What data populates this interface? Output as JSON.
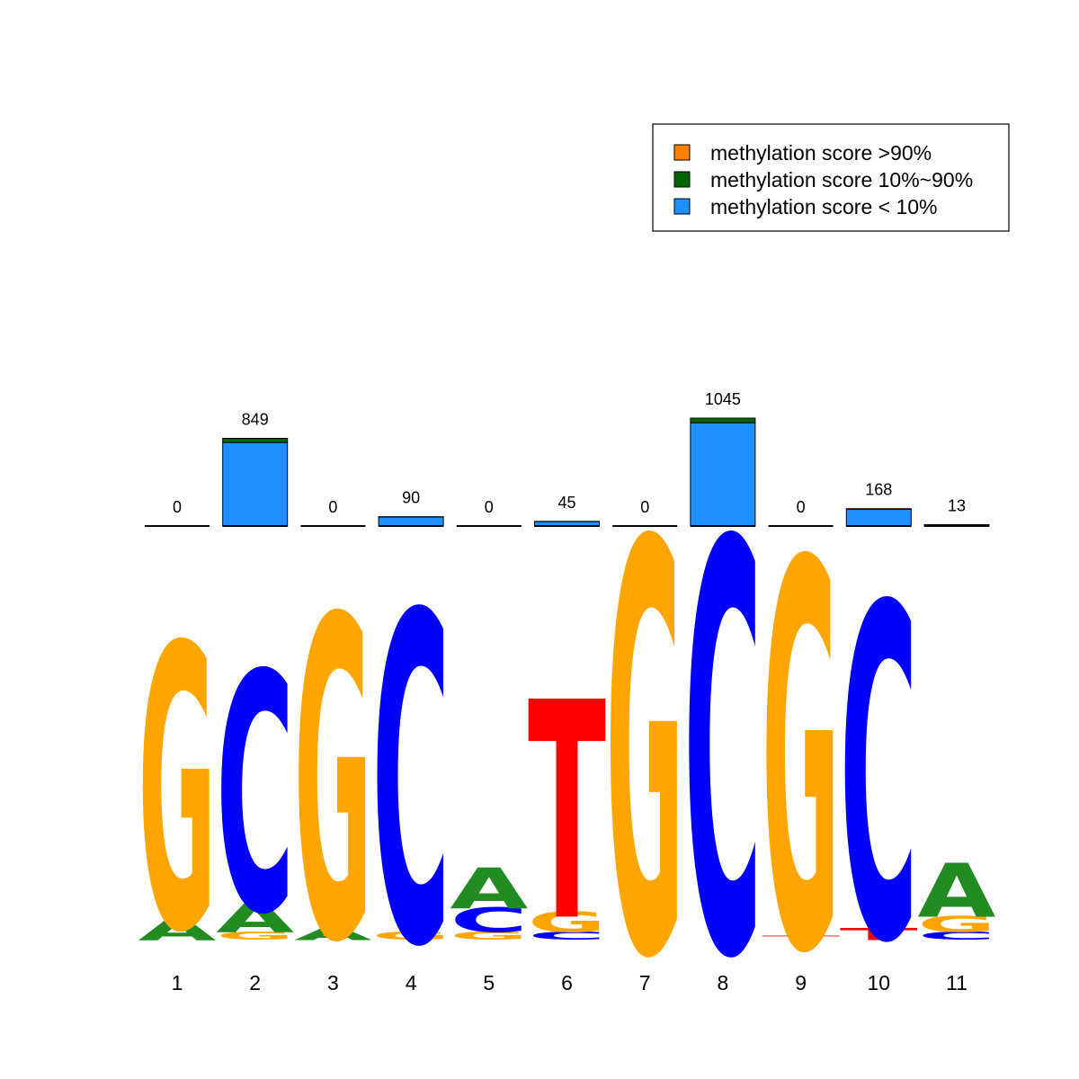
{
  "colors": {
    "A": "#228B22",
    "C": "#0000FF",
    "G": "#FFA500",
    "T": "#FF0000",
    "high": "#FF7F00",
    "mid": "#006400",
    "low": "#1E90FF"
  },
  "legend": [
    {
      "label": "methylation score >90%",
      "color": "#FF7F00"
    },
    {
      "label": "methylation score 10%~90%",
      "color": "#006400"
    },
    {
      "label": "methylation score < 10%",
      "color": "#1E90FF"
    }
  ],
  "chart_data": [
    {
      "type": "bar",
      "categories": [
        "1",
        "2",
        "3",
        "4",
        "5",
        "6",
        "7",
        "8",
        "9",
        "10",
        "11"
      ],
      "count_labels": [
        "0",
        "849",
        "0",
        "90",
        "0",
        "45",
        "0",
        "1045",
        "0",
        "168",
        "13"
      ],
      "series": [
        {
          "name": "methylation score >90%",
          "values": [
            0,
            0,
            0,
            0,
            0,
            0,
            0,
            0,
            0,
            0,
            0
          ]
        },
        {
          "name": "methylation score 10%~90%",
          "values": [
            0,
            40,
            0,
            3,
            0,
            2,
            0,
            45,
            0,
            5,
            1
          ]
        },
        {
          "name": "methylation score < 10%",
          "values": [
            0,
            809,
            0,
            87,
            0,
            43,
            0,
            1000,
            0,
            163,
            12
          ]
        }
      ]
    },
    {
      "type": "sequence_logo",
      "positions": [
        "1",
        "2",
        "3",
        "4",
        "5",
        "6",
        "7",
        "8",
        "9",
        "10",
        "11"
      ],
      "letters": [
        [
          {
            "l": "A",
            "v": 0.05
          },
          {
            "l": "G",
            "v": 0.69
          }
        ],
        [
          {
            "l": "G",
            "v": 0.02
          },
          {
            "l": "A",
            "v": 0.07
          },
          {
            "l": "C",
            "v": 0.58
          }
        ],
        [
          {
            "l": "A",
            "v": 0.03
          },
          {
            "l": "G",
            "v": 0.78
          }
        ],
        [
          {
            "l": "G",
            "v": 0.02
          },
          {
            "l": "C",
            "v": 0.8
          }
        ],
        [
          {
            "l": "G",
            "v": 0.02
          },
          {
            "l": "C",
            "v": 0.06
          },
          {
            "l": "A",
            "v": 0.1
          }
        ],
        [
          {
            "l": "C",
            "v": 0.02
          },
          {
            "l": "G",
            "v": 0.05
          },
          {
            "l": "T",
            "v": 0.53
          }
        ],
        [
          {
            "l": "G",
            "v": 1.0
          }
        ],
        [
          {
            "l": "C",
            "v": 1.0
          }
        ],
        [
          {
            "l": "T",
            "v": 0.01
          },
          {
            "l": "G",
            "v": 0.94
          }
        ],
        [
          {
            "l": "T",
            "v": 0.03
          },
          {
            "l": "C",
            "v": 0.81
          }
        ],
        [
          {
            "l": "C",
            "v": 0.02
          },
          {
            "l": "G",
            "v": 0.04
          },
          {
            "l": "A",
            "v": 0.13
          }
        ]
      ]
    }
  ]
}
